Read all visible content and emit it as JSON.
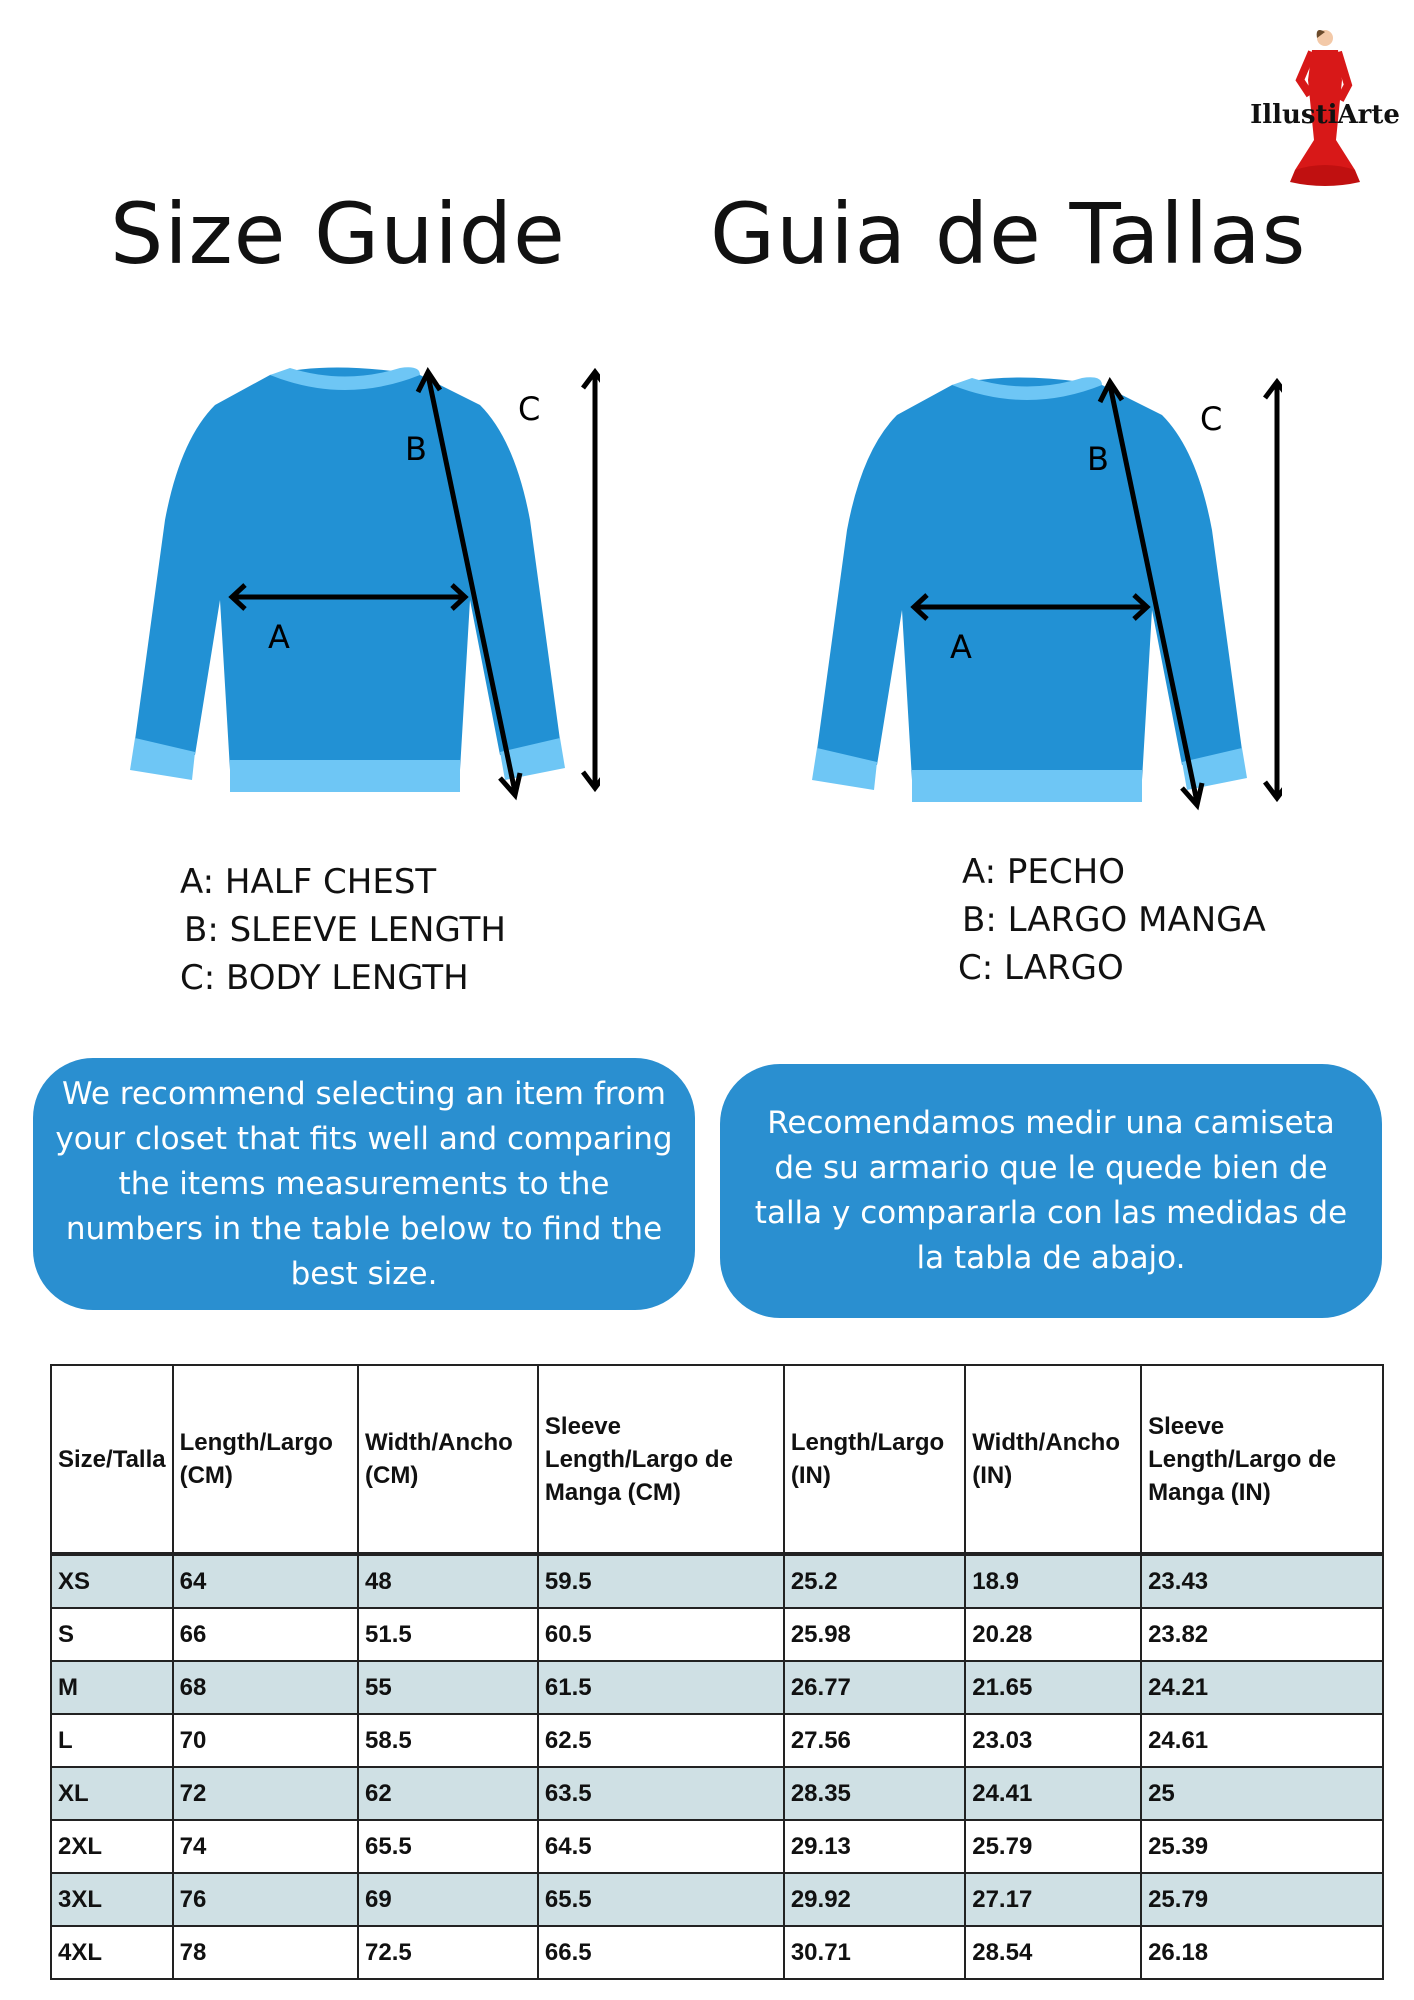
{
  "titles": {
    "english": "Size Guide",
    "spanish": "Guia de Tallas"
  },
  "logo": {
    "text": "IllustiArte"
  },
  "diagram_labels": {
    "a": "A",
    "b": "B",
    "c": "C"
  },
  "legend_english": [
    "A: HALF CHEST",
    "B: SLEEVE LENGTH",
    "C: BODY LENGTH"
  ],
  "legend_spanish": [
    "A: PECHO",
    "B: LARGO MANGA",
    "C: LARGO"
  ],
  "recommendation_english": "We recommend selecting an item from your closet that fits well and comparing the items measurements to the numbers in the table below to find the best size.",
  "recommendation_spanish": "Recomendamos medir una camiseta de su armario que le quede bien de talla y compararla con las medidas de la tabla de abajo.",
  "colors": {
    "sweater": "#2291d4",
    "cuff": "#6ec6f5",
    "box": "#2a8fd0",
    "row_stripe": "#cfe0e4"
  },
  "table": {
    "headers": [
      "Size/Talla",
      "Length/Largo (CM)",
      "Width/Ancho (CM)",
      "Sleeve Length/Largo de Manga (CM)",
      "Length/Largo (IN)",
      "Width/Ancho (IN)",
      "Sleeve Length/Largo de Manga (IN)"
    ],
    "rows": [
      [
        "XS",
        "64",
        "48",
        "59.5",
        "25.2",
        "18.9",
        "23.43"
      ],
      [
        "S",
        "66",
        "51.5",
        "60.5",
        "25.98",
        "20.28",
        "23.82"
      ],
      [
        "M",
        "68",
        "55",
        "61.5",
        "26.77",
        "21.65",
        "24.21"
      ],
      [
        "L",
        "70",
        "58.5",
        "62.5",
        "27.56",
        "23.03",
        "24.61"
      ],
      [
        "XL",
        "72",
        "62",
        "63.5",
        "28.35",
        "24.41",
        "25"
      ],
      [
        "2XL",
        "74",
        "65.5",
        "64.5",
        "29.13",
        "25.79",
        "25.39"
      ],
      [
        "3XL",
        "76",
        "69",
        "65.5",
        "29.92",
        "27.17",
        "25.79"
      ],
      [
        "4XL",
        "78",
        "72.5",
        "66.5",
        "30.71",
        "28.54",
        "26.18"
      ]
    ]
  }
}
